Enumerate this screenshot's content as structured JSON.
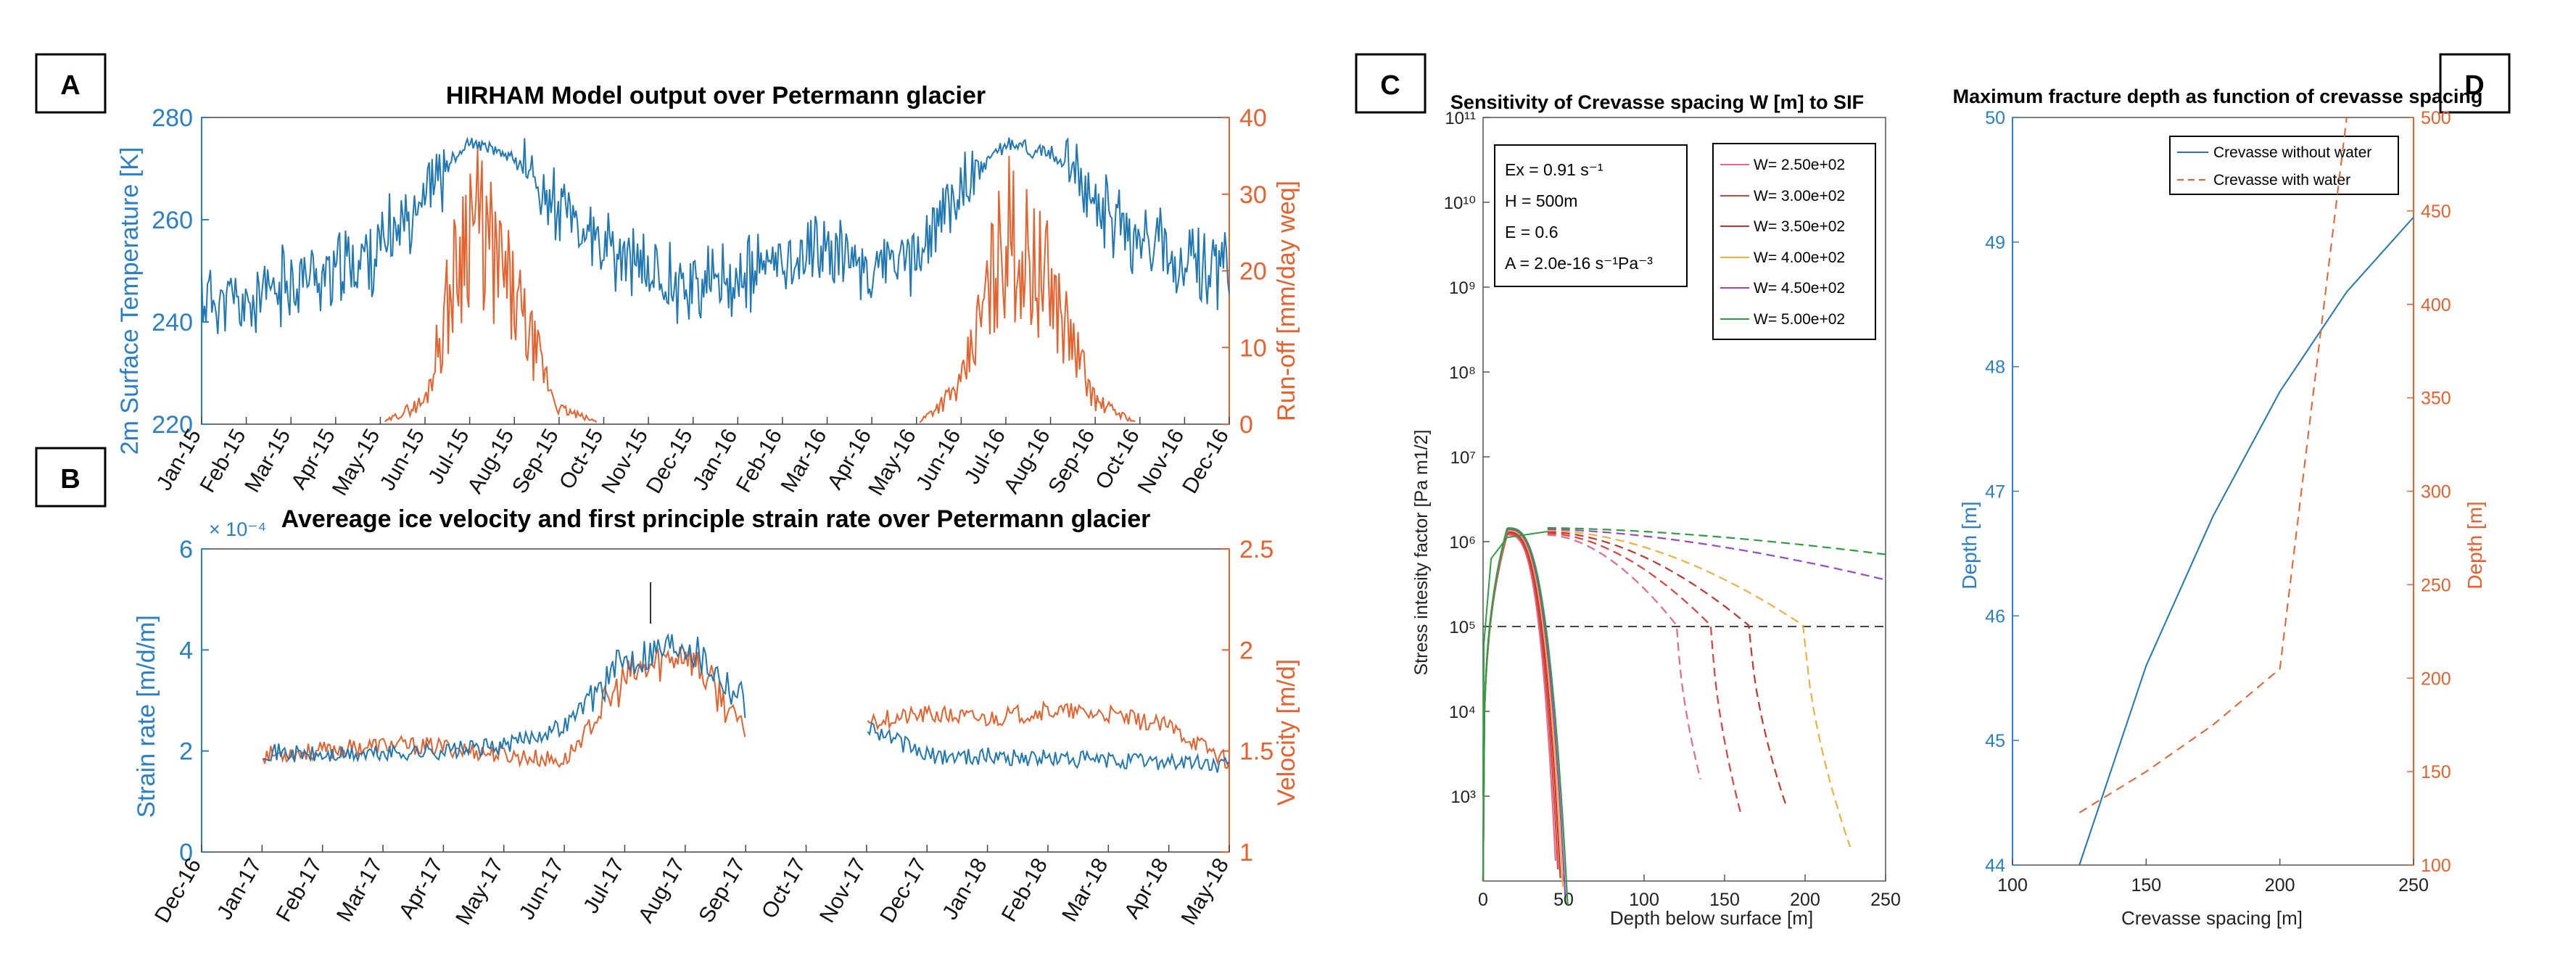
{
  "colors": {
    "blue": "#1f77b4",
    "orange": "#e8602c",
    "axis_blue": "#2a80c5",
    "axis_orange": "#e8602c",
    "grid": "#333333"
  },
  "panel_labels": {
    "a": "A",
    "b": "B",
    "c": "C",
    "d": "D"
  },
  "chart_data": [
    {
      "id": "A",
      "type": "line",
      "title": "HIRHAM Model output over Petermann glacier",
      "xlabel": "",
      "ylabel_left": "2m Surface Temperature [K]",
      "ylabel_right": "Run-off [mm/day weq]",
      "ylim_left": [
        220,
        280
      ],
      "ylim_right": [
        0,
        40
      ],
      "yticks_left": [
        220,
        240,
        260,
        280
      ],
      "yticks_right": [
        0,
        10,
        20,
        30,
        40
      ],
      "categories": [
        "Jan-15",
        "Feb-15",
        "Mar-15",
        "Apr-15",
        "May-15",
        "Jun-15",
        "Jul-15",
        "Aug-15",
        "Sep-15",
        "Oct-15",
        "Nov-15",
        "Dec-15",
        "Jan-16",
        "Feb-16",
        "Mar-16",
        "Apr-16",
        "May-16",
        "Jun-16",
        "Jul-16",
        "Aug-16",
        "Sep-16",
        "Oct-16",
        "Nov-16",
        "Dec-16"
      ],
      "series": [
        {
          "name": "2m Surface Temperature",
          "axis": "left",
          "values": [
            245,
            243,
            248,
            250,
            254,
            266,
            275,
            272,
            262,
            254,
            250,
            247,
            248,
            252,
            255,
            250,
            253,
            266,
            275,
            273,
            264,
            256,
            252,
            250
          ]
        },
        {
          "name": "Run-off",
          "axis": "right",
          "values": [
            0,
            0,
            0,
            0,
            0,
            3,
            28,
            16,
            2,
            0,
            0,
            0,
            0,
            0,
            0,
            0,
            0,
            5,
            25,
            18,
            3,
            0,
            0,
            0
          ]
        }
      ]
    },
    {
      "id": "B",
      "type": "line",
      "title": "Avereage ice velocity and first principle strain rate over Petermann glacier",
      "exponent": "× 10⁻⁴",
      "xlabel": "",
      "ylabel_left": "Strain rate [m/d/m]",
      "ylabel_right": "Velocity [m/d]",
      "ylim_left": [
        0,
        6
      ],
      "ylim_right": [
        1,
        2.5
      ],
      "yticks_left": [
        0,
        2,
        4,
        6
      ],
      "yticks_right": [
        1,
        1.5,
        2,
        2.5
      ],
      "categories": [
        "Dec-16",
        "Jan-17",
        "Feb-17",
        "Mar-17",
        "Apr-17",
        "May-17",
        "Jun-17",
        "Jul-17",
        "Aug-17",
        "Sep-17",
        "Oct-17",
        "Nov-17",
        "Dec-17",
        "Jan-18",
        "Feb-18",
        "Mar-18",
        "Apr-18",
        "May-18"
      ],
      "series": [
        {
          "name": "Strain rate",
          "axis": "left",
          "values": [
            null,
            2.0,
            1.9,
            1.95,
            2.0,
            2.1,
            2.5,
            3.8,
            4.2,
            3.0,
            null,
            2.5,
            1.9,
            1.9,
            1.85,
            1.8,
            1.8,
            1.7
          ]
        },
        {
          "name": "Velocity",
          "axis": "right",
          "values": [
            null,
            1.48,
            1.5,
            1.53,
            1.52,
            1.48,
            1.45,
            1.85,
            2.0,
            1.6,
            null,
            1.65,
            1.68,
            1.66,
            1.7,
            1.68,
            1.62,
            1.45
          ]
        }
      ]
    },
    {
      "id": "C",
      "type": "line",
      "title": "Sensitivity of Crevasse spacing W [m] to SIF",
      "xlabel": "Depth below surface [m]",
      "ylabel": "Stress intesity factor [Pa m1/2]",
      "xlim": [
        0,
        250
      ],
      "xticks": [
        0,
        50,
        100,
        150,
        200,
        250
      ],
      "ylim_log": [
        2,
        11
      ],
      "ytick_labels": [
        "10³",
        "10⁴",
        "10⁵",
        "10⁶",
        "10⁷",
        "10⁸",
        "10⁹",
        "10¹⁰",
        "10¹¹"
      ],
      "threshold": 100000,
      "params": [
        "Ex = 0.91 s⁻¹",
        "H = 500m",
        "E = 0.6",
        "A = 2.0e-16 s⁻¹Pa⁻³"
      ],
      "series": [
        {
          "name": "W=  2.50e+02",
          "color": "#e46a8c",
          "peak": 1200000.0,
          "end_depth": 135,
          "end_log": 3.2
        },
        {
          "name": "W=  3.00e+02",
          "color": "#e04040",
          "peak": 1250000.0,
          "end_depth": 160,
          "end_log": 2.8
        },
        {
          "name": "W=  3.50e+02",
          "color": "#c0392b",
          "peak": 1300000.0,
          "end_depth": 188,
          "end_log": 2.9
        },
        {
          "name": "W=  4.00e+02",
          "color": "#f0b040",
          "peak": 1350000.0,
          "end_depth": 228,
          "end_log": 2.4
        },
        {
          "name": "W=  4.50e+02",
          "color": "#9b45c9",
          "peak": 1400000.0,
          "end_depth": 250,
          "end_log": 5.55
        },
        {
          "name": "W=  5.00e+02",
          "color": "#2e9e3e",
          "peak": 1450000.0,
          "end_depth": 250,
          "end_log": 5.85
        }
      ]
    },
    {
      "id": "D",
      "type": "line",
      "title": "Maximum fracture depth as function of crevasse spacing",
      "xlabel": "Crevasse spacing [m]",
      "ylabel_left": "Depth [m]",
      "ylabel_right": "Depth [m]",
      "xlim": [
        100,
        250
      ],
      "xticks": [
        100,
        150,
        200,
        250
      ],
      "ylim_left": [
        44,
        50
      ],
      "yticks_left": [
        44,
        45,
        46,
        47,
        48,
        49,
        50
      ],
      "ylim_right": [
        100,
        500
      ],
      "yticks_right": [
        100,
        150,
        200,
        250,
        300,
        350,
        400,
        450,
        500
      ],
      "legend": [
        "Crevasse without water",
        "Crevasse with water"
      ],
      "series": [
        {
          "name": "Crevasse without water",
          "axis": "left",
          "x": [
            125,
            150,
            175,
            200,
            225,
            250
          ],
          "y": [
            44.0,
            45.6,
            46.8,
            47.8,
            48.6,
            49.2
          ]
        },
        {
          "name": "Crevasse with water",
          "axis": "right",
          "x": [
            125,
            150,
            175,
            200,
            225
          ],
          "y": [
            128,
            150,
            175,
            205,
            500
          ]
        }
      ]
    }
  ]
}
